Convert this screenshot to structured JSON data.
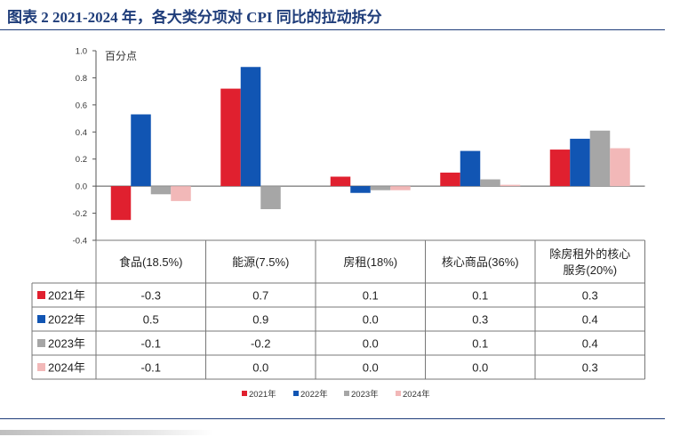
{
  "figure": {
    "title": "图表 2   2021-2024 年，各大类分项对 CPI 同比的拉动拆分"
  },
  "chart_data": {
    "type": "bar",
    "unit_label": "百分点",
    "ylim": [
      -0.4,
      1.0
    ],
    "yticks": [
      "1.0",
      "0.8",
      "0.6",
      "0.4",
      "0.2",
      "0.0",
      "-0.2",
      "-0.4"
    ],
    "ytick_values": [
      1.0,
      0.8,
      0.6,
      0.4,
      0.2,
      0.0,
      -0.2,
      -0.4
    ],
    "categories": [
      "食品(18.5%)",
      "能源(7.5%)",
      "房租(18%)",
      "核心商品(36%)",
      "除房租外的核心服务(20%)"
    ],
    "category_label_lines": [
      [
        "食品(18.5%)"
      ],
      [
        "能源(7.5%)"
      ],
      [
        "房租(18%)"
      ],
      [
        "核心商品(36%)"
      ],
      [
        "除房租外的核心",
        "服务(20%)"
      ]
    ],
    "series": [
      {
        "name": "2021年",
        "color": "#e0202f",
        "values": [
          -0.25,
          0.72,
          0.07,
          0.1,
          0.27
        ],
        "table_values": [
          "-0.3",
          "0.7",
          "0.1",
          "0.1",
          "0.3"
        ]
      },
      {
        "name": "2022年",
        "color": "#1155b3",
        "values": [
          0.53,
          0.88,
          -0.05,
          0.26,
          0.35
        ],
        "table_values": [
          "0.5",
          "0.9",
          "0.0",
          "0.3",
          "0.4"
        ]
      },
      {
        "name": "2023年",
        "color": "#a6a6a6",
        "values": [
          -0.06,
          -0.17,
          -0.03,
          0.05,
          0.41
        ],
        "table_values": [
          "-0.1",
          "-0.2",
          "0.0",
          "0.1",
          "0.4"
        ]
      },
      {
        "name": "2024年",
        "color": "#f2b8b8",
        "values": [
          -0.11,
          0.0,
          -0.03,
          0.01,
          0.28
        ],
        "table_values": [
          "-0.1",
          "0.0",
          "0.0",
          "0.0",
          "0.3"
        ]
      }
    ],
    "grid": false,
    "legend_position": "bottom",
    "data_table": true
  }
}
